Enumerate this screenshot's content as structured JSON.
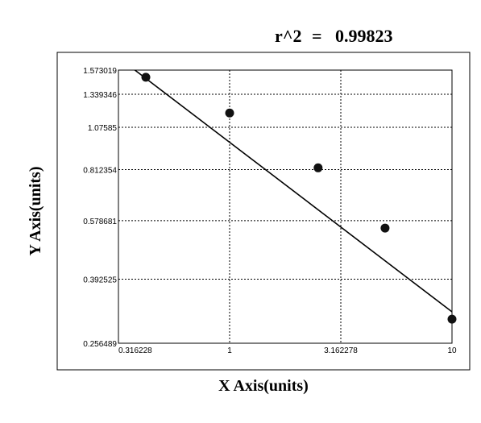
{
  "stat_label": "r^2",
  "stat_equals": "=",
  "stat_value": "0.99823",
  "chart_data": {
    "type": "scatter",
    "xlabel": "X Axis(units)",
    "ylabel": "Y Axis(units)",
    "x_scale": "log",
    "y_scale": "log",
    "xlim": [
      0.316228,
      10
    ],
    "ylim": [
      0.256489,
      1.573019
    ],
    "x_tick_labels": [
      "0.316228",
      "1",
      "3.162278",
      "10"
    ],
    "x_tick_values": [
      0.316228,
      1,
      3.162278,
      10
    ],
    "y_tick_labels": [
      "1.573019",
      "1.339346",
      "1.07585",
      "0.812354",
      "0.578681",
      "0.392525",
      "0.256489"
    ],
    "y_tick_values": [
      1.573019,
      1.339346,
      1.07585,
      0.812354,
      0.578681,
      0.392525,
      0.256489
    ],
    "grid": true,
    "grid_style": "dashed",
    "series": [
      {
        "type": "scatter",
        "x": [
          0.42,
          1.0,
          2.5,
          5.0,
          10.0
        ],
        "y": [
          1.5,
          1.183,
          0.822,
          0.551,
          0.301
        ]
      },
      {
        "type": "line",
        "fit": "linear",
        "x": [
          0.375,
          10.0
        ],
        "y": [
          1.573,
          0.316
        ]
      }
    ]
  }
}
